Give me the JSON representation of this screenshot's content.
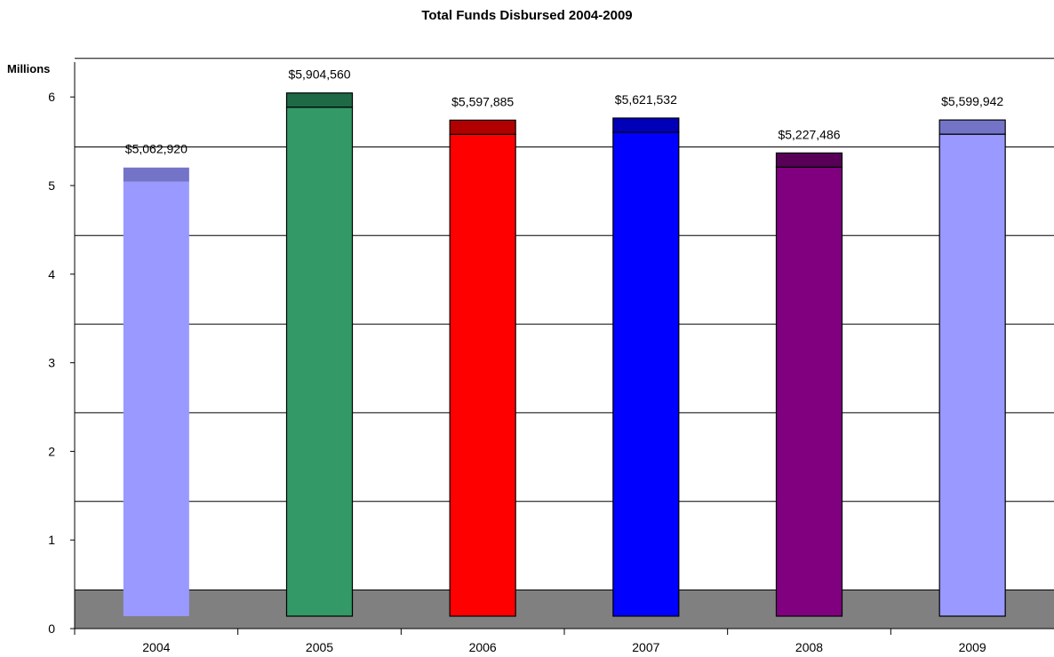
{
  "chart_data": {
    "type": "bar",
    "title": "Total Funds Disbursed 2004-2009",
    "ylabel": "Millions",
    "ylim": [
      0,
      6.6
    ],
    "yticks": [
      "0",
      "1",
      "2",
      "3",
      "4",
      "5",
      "6"
    ],
    "categories": [
      "2004",
      "2005",
      "2006",
      "2007",
      "2008",
      "2009"
    ],
    "values": [
      5.06292,
      5.90456,
      5.597885,
      5.621532,
      5.227486,
      5.599942
    ],
    "data_labels": [
      "$5,062,920",
      "$5,904,560",
      "$5,597,885",
      "$5,621,532",
      "$5,227,486",
      "$5,599,942"
    ],
    "grid": true,
    "bar_colors": [
      "#9999ff",
      "#339966",
      "#ff0000",
      "#0000ff",
      "#800080",
      "#9999ff"
    ],
    "bar_top_colors": [
      "#7373c8",
      "#1f6a46",
      "#b00000",
      "#0000b8",
      "#580058",
      "#7373c8"
    ],
    "bar_outlined": [
      false,
      true,
      true,
      true,
      true,
      true
    ],
    "floor_color": "#808080"
  }
}
